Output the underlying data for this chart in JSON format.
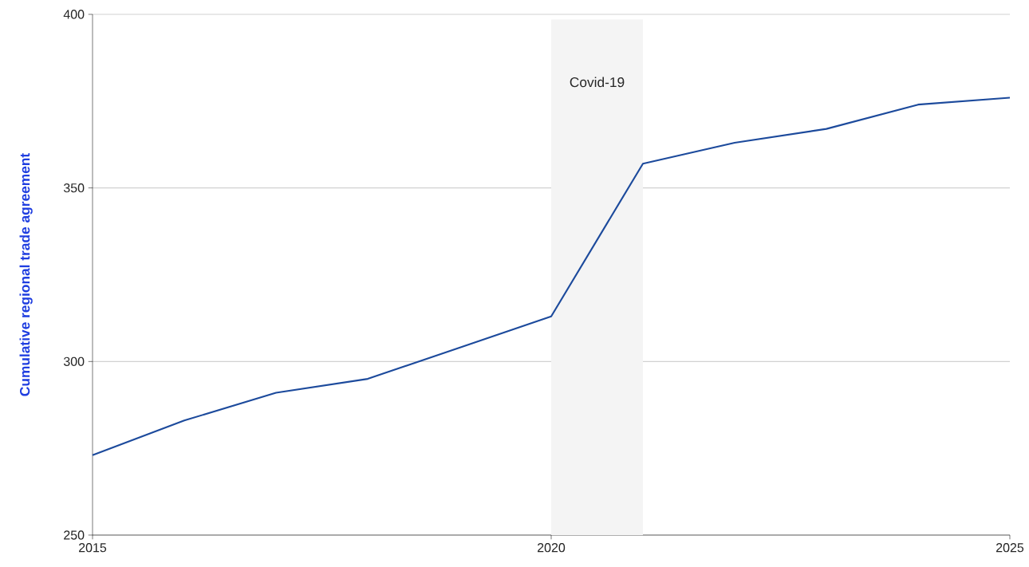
{
  "chart_data": {
    "type": "line",
    "ylabel": "Cumulative regional trade agreement",
    "x": [
      2015,
      2016,
      2017,
      2018,
      2019,
      2020,
      2021,
      2022,
      2023,
      2024,
      2025
    ],
    "series": [
      {
        "color": "#1c4a9c",
        "values": [
          273,
          283,
          291,
          295,
          304,
          313,
          357,
          363,
          367,
          374,
          376
        ]
      }
    ],
    "xlim": [
      2015,
      2025
    ],
    "ylim": [
      250,
      400
    ],
    "xticks": [
      2015,
      2020,
      2025
    ],
    "yticks": [
      250,
      300,
      350,
      400
    ],
    "grid": "y",
    "marker": "none",
    "line_style": "solid",
    "bands": [
      {
        "axis": "x",
        "from": 2020,
        "to": 2021,
        "label": "Covid-19",
        "color": "#f4f4f4"
      }
    ]
  }
}
